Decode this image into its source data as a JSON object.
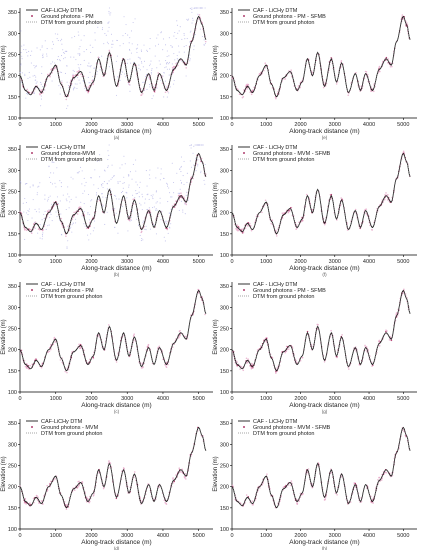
{
  "figure": {
    "charts": [
      {
        "id": "a",
        "sublabel": "(a)",
        "xlabel": "Along-track distance (m)",
        "ylabel": "Elevation (m)",
        "noise": "high",
        "legend": [
          "CAF-LiCHy DTM",
          "Ground photons - PM",
          "DTM from ground photon"
        ]
      },
      {
        "id": "e",
        "sublabel": "(e)",
        "xlabel": "Along-track distance (m)",
        "ylabel": "Elevation (m)",
        "noise": "low",
        "legend": [
          "CAF - LiCHy DTM",
          "Ground photons - PM - SFMB",
          "DTM from ground photon"
        ]
      },
      {
        "id": "b",
        "sublabel": "(b)",
        "xlabel": "Along-track distance (m)",
        "ylabel": "Elevation (m)",
        "noise": "high",
        "legend": [
          "CAF - LiCHy DTM",
          "Ground photons-MVM",
          "DTM from ground photon"
        ]
      },
      {
        "id": "f",
        "sublabel": "(f)",
        "xlabel": "Along-track distance (m)",
        "ylabel": "Elevation (m)",
        "noise": "low",
        "legend": [
          "CAF - LiCHy DTM",
          "Ground photons - MVM - SFMB",
          "DTM from ground photon"
        ]
      },
      {
        "id": "c",
        "sublabel": "(c)",
        "xlabel": "Along-track distance (m)",
        "ylabel": "Elevation (m)",
        "noise": "low",
        "legend": [
          "CAF - LiCHy DTM",
          "Ground photons - PM",
          "DTM from ground photon"
        ]
      },
      {
        "id": "g",
        "sublabel": "(g)",
        "xlabel": "Along-track distance (m)",
        "ylabel": "Elevation (m)",
        "noise": "low",
        "legend": [
          "CAF - LiCHy DTM",
          "Ground photons - PM - SFMB",
          "DTM from ground photon"
        ]
      },
      {
        "id": "d",
        "sublabel": "(d)",
        "xlabel": "Along-track distance (m)",
        "ylabel": "Elevation (m)",
        "noise": "low",
        "legend": [
          "CAF-LiCHy DTM",
          "Ground photons - MVM",
          "DTM from ground photon"
        ]
      },
      {
        "id": "h",
        "sublabel": "(h)",
        "xlabel": "Along-track distance (m)",
        "ylabel": "Elevation (m)",
        "noise": "low",
        "legend": [
          "CAF - LiCHy DTM",
          "Ground photons - MVM - SFMB",
          "DTM from ground photon"
        ]
      }
    ]
  },
  "chart_data": {
    "type": "line",
    "xlim": [
      0,
      5400
    ],
    "ylim": [
      100,
      360
    ],
    "x_ticks": [
      0,
      1000,
      2000,
      3000,
      4000,
      5000
    ],
    "y_ticks": [
      100,
      150,
      200,
      250,
      300,
      350
    ],
    "grid": false,
    "legend_position": "top",
    "x": [
      0,
      150,
      300,
      450,
      600,
      800,
      1000,
      1150,
      1300,
      1500,
      1700,
      1900,
      2050,
      2200,
      2350,
      2500,
      2700,
      2900,
      3050,
      3200,
      3400,
      3600,
      3750,
      3900,
      4100,
      4300,
      4500,
      4650,
      4800,
      5000,
      5100,
      5200
    ],
    "series": [
      {
        "name": "DTM",
        "values": [
          200,
          165,
          155,
          175,
          160,
          200,
          225,
          180,
          150,
          195,
          210,
          165,
          185,
          240,
          200,
          255,
          175,
          240,
          185,
          230,
          160,
          205,
          165,
          205,
          165,
          215,
          240,
          225,
          280,
          340,
          320,
          285
        ]
      }
    ],
    "colors": {
      "dtm": "#1a1a1a",
      "photons": "#b04070",
      "photon_halo": "#e6a8c8",
      "noise_photons": "#b8b8e8",
      "dtm_from_photon": "#888888"
    }
  }
}
